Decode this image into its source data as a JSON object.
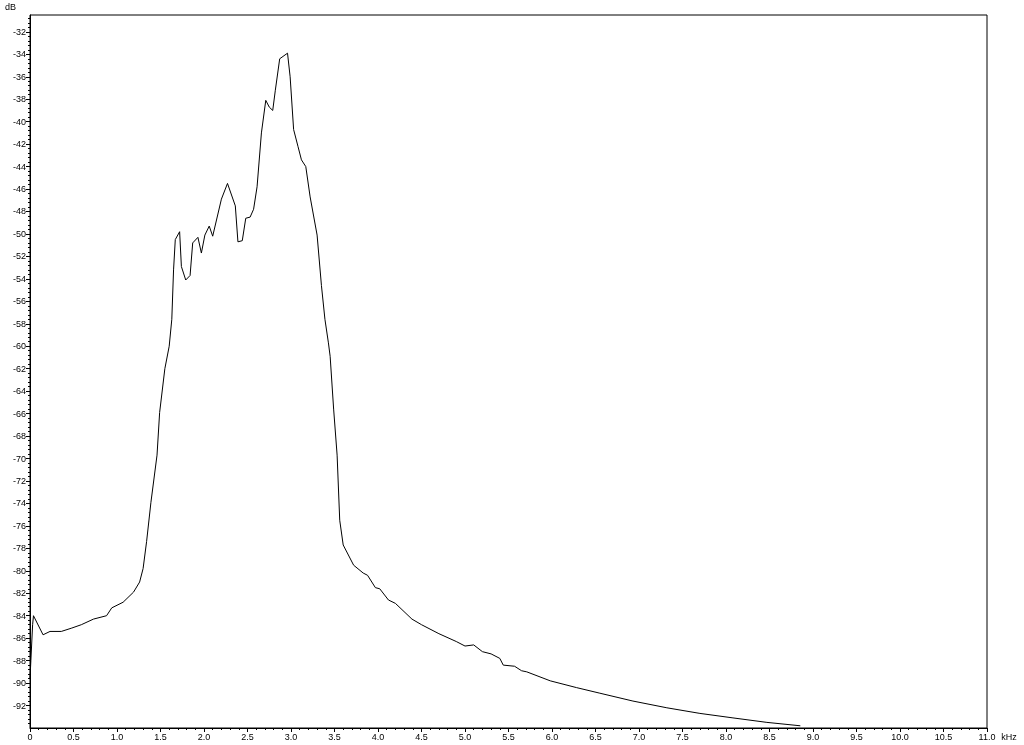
{
  "chart_data": {
    "type": "line",
    "xlabel": "kHz",
    "ylabel": "dB",
    "xlim": [
      0,
      11
    ],
    "ylim": [
      -94,
      -30.5
    ],
    "xticks": [
      0,
      0.5,
      {
        "value": 1,
        "label": "1.0"
      },
      1.5,
      {
        "value": 2,
        "label": "2.0"
      },
      2.5,
      {
        "value": 3,
        "label": "3.0"
      },
      3.5,
      {
        "value": 4,
        "label": "4.0"
      },
      4.5,
      {
        "value": 5,
        "label": "5.0"
      },
      5.5,
      {
        "value": 6,
        "label": "6.0"
      },
      6.5,
      {
        "value": 7,
        "label": "7.0"
      },
      7.5,
      {
        "value": 8,
        "label": "8.0"
      },
      8.5,
      {
        "value": 9,
        "label": "9.0"
      },
      9.5,
      {
        "value": 10,
        "label": "10.0"
      },
      10.5,
      {
        "value": 11,
        "label": "11.0"
      }
    ],
    "yticks": [
      -92,
      -90,
      -88,
      -86,
      -84,
      -82,
      -80,
      -78,
      -76,
      -74,
      -72,
      -70,
      -68,
      -66,
      -64,
      -62,
      -60,
      -58,
      -56,
      -54,
      -52,
      -50,
      -48,
      -46,
      -44,
      -42,
      -40,
      -38,
      -36,
      -34,
      -32
    ],
    "grid": false,
    "marker": "none",
    "line_style": "solid",
    "series": [
      {
        "color": "#000000",
        "x": [
          0,
          0.01,
          0.03,
          0.04,
          0.15,
          0.23,
          0.36,
          0.48,
          0.59,
          0.73,
          0.88,
          0.94,
          1.07,
          1.19,
          1.26,
          1.3,
          1.34,
          1.39,
          1.46,
          1.49,
          1.55,
          1.6,
          1.63,
          1.65,
          1.67,
          1.72,
          1.74,
          1.79,
          1.84,
          1.87,
          1.93,
          1.97,
          2.01,
          2.06,
          2.1,
          2.2,
          2.27,
          2.36,
          2.39,
          2.44,
          2.48,
          2.53,
          2.57,
          2.61,
          2.66,
          2.71,
          2.75,
          2.79,
          2.82,
          2.87,
          2.96,
          2.99,
          3.03,
          3.08,
          3.12,
          3.17,
          3.22,
          3.26,
          3.3,
          3.35,
          3.39,
          3.43,
          3.45,
          3.49,
          3.53,
          3.56,
          3.6,
          3.72,
          3.83,
          3.88,
          3.97,
          4.02,
          4.12,
          4.2,
          4.39,
          4.5,
          4.7,
          4.9,
          5.0,
          5.1,
          5.2,
          5.3,
          5.4,
          5.44,
          5.57,
          5.65,
          5.71,
          5.98,
          6.28,
          6.55,
          6.93,
          7.32,
          7.7,
          8.08,
          8.47,
          8.85
        ],
        "values": [
          -89.6,
          -88.0,
          -84.8,
          -84.0,
          -85.7,
          -85.4,
          -85.4,
          -85.1,
          -84.8,
          -84.3,
          -84.0,
          -83.3,
          -82.8,
          -81.9,
          -81.0,
          -79.8,
          -77.4,
          -73.9,
          -69.7,
          -65.9,
          -62.0,
          -60.0,
          -57.6,
          -53.2,
          -50.5,
          -49.8,
          -52.9,
          -54.1,
          -53.7,
          -50.8,
          -50.3,
          -51.7,
          -50.1,
          -49.3,
          -50.2,
          -46.9,
          -45.5,
          -47.5,
          -50.7,
          -50.6,
          -48.6,
          -48.5,
          -47.8,
          -45.8,
          -41.0,
          -38.1,
          -38.7,
          -39.0,
          -37.2,
          -34.4,
          -33.9,
          -36.0,
          -40.7,
          -42.2,
          -43.4,
          -44.0,
          -46.7,
          -48.4,
          -50.1,
          -54.6,
          -57.6,
          -59.7,
          -60.9,
          -65.6,
          -69.7,
          -75.5,
          -77.7,
          -79.5,
          -80.2,
          -80.4,
          -81.5,
          -81.6,
          -82.6,
          -82.9,
          -84.3,
          -84.8,
          -85.6,
          -86.3,
          -86.7,
          -86.6,
          -87.2,
          -87.4,
          -87.8,
          -88.4,
          -88.5,
          -88.9,
          -89.0,
          -89.8,
          -90.4,
          -90.9,
          -91.6,
          -92.2,
          -92.7,
          -93.1,
          -93.5,
          -93.8
        ]
      }
    ]
  }
}
